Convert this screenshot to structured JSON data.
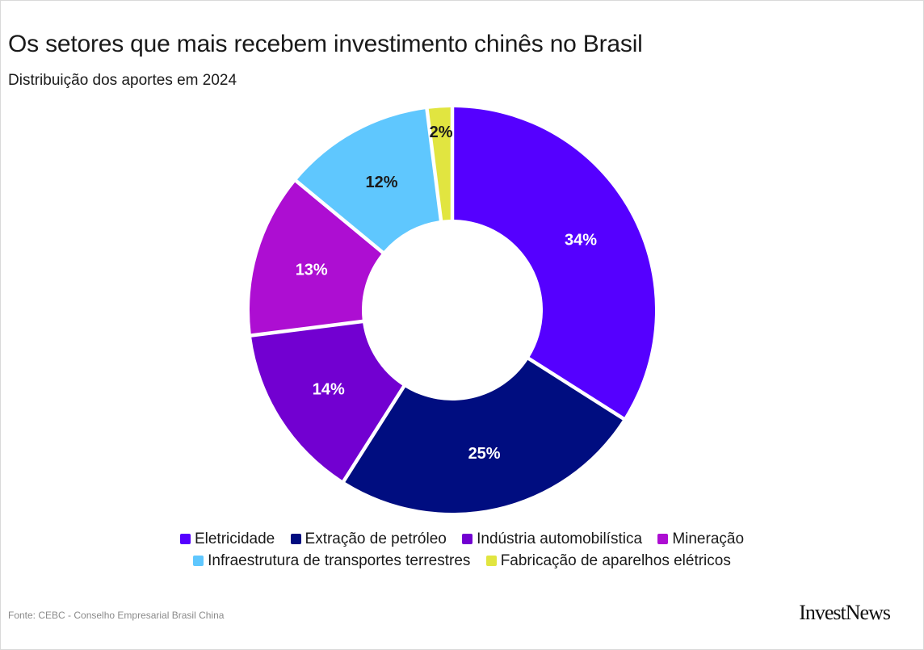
{
  "header": {
    "title": "Os setores que mais recebem investimento chinês no Brasil",
    "subtitle": "Distribuição dos aportes em 2024"
  },
  "chart_data": {
    "type": "pie",
    "donut": true,
    "legend_position": "bottom",
    "slices": [
      {
        "label": "Eletricidade",
        "value": 34,
        "display": "34%",
        "color": "#5500ff",
        "label_color": "#ffffff"
      },
      {
        "label": "Extração de petróleo",
        "value": 25,
        "display": "25%",
        "color": "#000d80",
        "label_color": "#ffffff"
      },
      {
        "label": "Indústria automobilística",
        "value": 14,
        "display": "14%",
        "color": "#7200d1",
        "label_color": "#ffffff"
      },
      {
        "label": "Mineração",
        "value": 13,
        "display": "13%",
        "color": "#ad0ed2",
        "label_color": "#ffffff"
      },
      {
        "label": "Infraestrutura de transportes terrestres",
        "value": 12,
        "display": "12%",
        "color": "#5fc7fe",
        "label_color": "#1a1a1a"
      },
      {
        "label": "Fabricação de aparelhos elétricos",
        "value": 2,
        "display": "2%",
        "color": "#e1e540",
        "label_color": "#1a1a1a"
      }
    ]
  },
  "footer": {
    "source": "Fonte: CEBC - Conselho Empresarial Brasil China",
    "brand": "InvestNews"
  }
}
